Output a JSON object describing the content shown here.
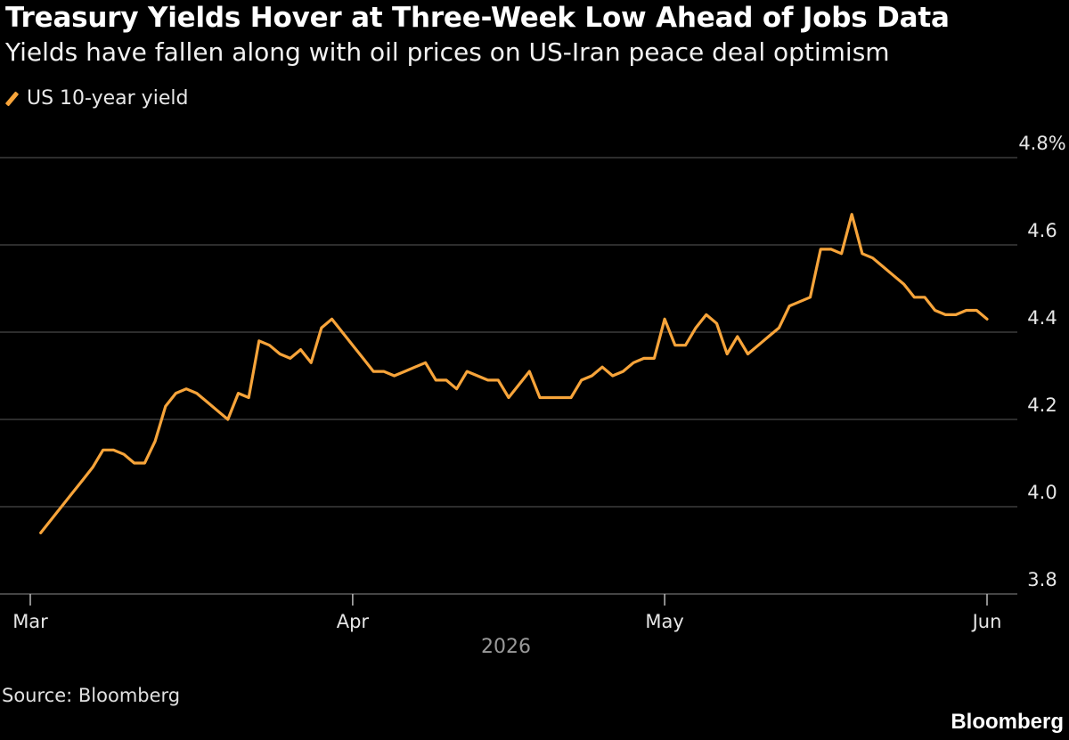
{
  "chart_data": {
    "type": "line",
    "title": "Treasury Yields Hover at Three-Week Low Ahead of Jobs Data",
    "subtitle": "Yields have fallen along with oil prices on US-Iran peace deal optimism",
    "legend": {
      "placement": "top-left",
      "entries": [
        "US 10-year yield"
      ]
    },
    "series": [
      {
        "name": "US 10-year yield",
        "color": "#F7A43A",
        "x": [
          "2026-03-02",
          "2026-03-03",
          "2026-03-04",
          "2026-03-05",
          "2026-03-06",
          "2026-03-07",
          "2026-03-08",
          "2026-03-09",
          "2026-03-10",
          "2026-03-11",
          "2026-03-12",
          "2026-03-13",
          "2026-03-14",
          "2026-03-15",
          "2026-03-16",
          "2026-03-17",
          "2026-03-18",
          "2026-03-19",
          "2026-03-20",
          "2026-03-21",
          "2026-03-22",
          "2026-03-23",
          "2026-03-24",
          "2026-03-25",
          "2026-03-26",
          "2026-03-27",
          "2026-03-28",
          "2026-03-29",
          "2026-03-30",
          "2026-03-31",
          "2026-04-01",
          "2026-04-02",
          "2026-04-03",
          "2026-04-04",
          "2026-04-05",
          "2026-04-06",
          "2026-04-07",
          "2026-04-08",
          "2026-04-09",
          "2026-04-10",
          "2026-04-11",
          "2026-04-12",
          "2026-04-13",
          "2026-04-14",
          "2026-04-15",
          "2026-04-16",
          "2026-04-17",
          "2026-04-18",
          "2026-04-19",
          "2026-04-20",
          "2026-04-21",
          "2026-04-22",
          "2026-04-23",
          "2026-04-24",
          "2026-04-25",
          "2026-04-26",
          "2026-04-27",
          "2026-04-28",
          "2026-04-29",
          "2026-04-30",
          "2026-05-01",
          "2026-05-02",
          "2026-05-03",
          "2026-05-04",
          "2026-05-05",
          "2026-05-06",
          "2026-05-07",
          "2026-05-08",
          "2026-05-09",
          "2026-05-10",
          "2026-05-11",
          "2026-05-12",
          "2026-05-13",
          "2026-05-14",
          "2026-05-15",
          "2026-05-16",
          "2026-05-17",
          "2026-05-18",
          "2026-05-19",
          "2026-05-20",
          "2026-05-21",
          "2026-05-22",
          "2026-05-23",
          "2026-05-24",
          "2026-05-25",
          "2026-05-26",
          "2026-05-27",
          "2026-05-28",
          "2026-05-29",
          "2026-05-30",
          "2026-05-31",
          "2026-06-01"
        ],
        "values": [
          3.94,
          3.97,
          4.0,
          4.03,
          4.06,
          4.09,
          4.13,
          4.13,
          4.12,
          4.1,
          4.1,
          4.15,
          4.23,
          4.26,
          4.27,
          4.26,
          4.24,
          4.22,
          4.2,
          4.26,
          4.25,
          4.38,
          4.37,
          4.35,
          4.34,
          4.36,
          4.33,
          4.41,
          4.43,
          4.4,
          4.37,
          4.34,
          4.31,
          4.31,
          4.3,
          4.31,
          4.32,
          4.33,
          4.29,
          4.29,
          4.27,
          4.31,
          4.3,
          4.29,
          4.29,
          4.25,
          4.28,
          4.31,
          4.25,
          4.25,
          4.25,
          4.25,
          4.29,
          4.3,
          4.32,
          4.3,
          4.31,
          4.33,
          4.34,
          4.34,
          4.43,
          4.37,
          4.37,
          4.41,
          4.44,
          4.42,
          4.35,
          4.39,
          4.35,
          4.37,
          4.39,
          4.41,
          4.46,
          4.47,
          4.48,
          4.59,
          4.59,
          4.58,
          4.67,
          4.58,
          4.57,
          4.55,
          4.53,
          4.51,
          4.48,
          4.48,
          4.45,
          4.44,
          4.44,
          4.45,
          4.45,
          4.43
        ]
      }
    ],
    "x_ticks": [
      {
        "date": "2026-03-01",
        "label": "Mar"
      },
      {
        "date": "2026-04-01",
        "label": "Apr"
      },
      {
        "date": "2026-05-01",
        "label": "May"
      },
      {
        "date": "2026-06-01",
        "label": "Jun"
      }
    ],
    "x_year_label": "2026",
    "y_ticks": [
      3.8,
      4.0,
      4.2,
      4.4,
      4.6,
      4.8
    ],
    "y_tick_labels": [
      "3.8",
      "4.0",
      "4.2",
      "4.4",
      "4.6",
      "4.8%"
    ],
    "ylim": [
      3.8,
      4.8
    ],
    "xlim": [
      "2026-02-28",
      "2026-06-01"
    ],
    "grid": "horizontal",
    "source": "Source: Bloomberg",
    "brand": "Bloomberg"
  }
}
